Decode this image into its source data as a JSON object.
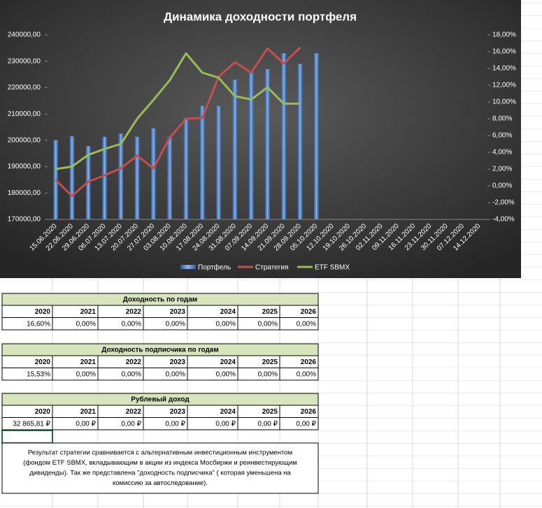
{
  "chart_data": {
    "type": "bar",
    "title": "Динамика доходности портфеля",
    "categories": [
      "15.06.2020",
      "22.06.2020",
      "29.06.2020",
      "06.07.2020",
      "13.07.2020",
      "20.07.2020",
      "27.07.2020",
      "03.08.2020",
      "10.08.2020",
      "17.08.2020",
      "24.08.2020",
      "31.08.2020",
      "07.09.2020",
      "14.09.2020",
      "21.09.2020",
      "28.09.2020",
      "05.10.2020",
      "12.10.2020",
      "19.10.2020",
      "26.10.2020",
      "02.11.2020",
      "09.11.2020",
      "16.11.2020",
      "23.11.2020",
      "30.11.2020",
      "07.12.2020",
      "14.12.2020"
    ],
    "series": [
      {
        "name": "Портфель",
        "type": "bar",
        "color": "#4f81bd",
        "axis": "y",
        "values": [
          200000,
          201500,
          197800,
          201300,
          202500,
          201300,
          204500,
          201300,
          208500,
          213000,
          213000,
          223000,
          226000,
          227000,
          233000,
          229000,
          233000,
          null,
          null,
          null,
          null,
          null,
          null,
          null,
          null,
          null,
          null
        ]
      },
      {
        "name": "Стратегия",
        "type": "line",
        "color": "#c0504d",
        "axis": "y2",
        "values": [
          0.7,
          -1.2,
          0.5,
          1.25,
          2.1,
          3.6,
          2.1,
          5.75,
          8.0,
          8.1,
          13.0,
          14.75,
          13.5,
          16.4,
          14.6,
          16.5,
          null,
          null,
          null,
          null,
          null,
          null,
          null,
          null,
          null,
          null,
          null
        ]
      },
      {
        "name": "ETF SBMX",
        "type": "line",
        "color": "#9bbb59",
        "axis": "y2",
        "values": [
          2.0,
          2.3,
          3.7,
          4.4,
          5.0,
          8.0,
          10.25,
          12.6,
          15.8,
          13.5,
          12.9,
          10.7,
          10.3,
          11.75,
          9.8,
          9.8,
          null,
          null,
          null,
          null,
          null,
          null,
          null,
          null,
          null,
          null,
          null
        ]
      }
    ],
    "ylim": [
      170000,
      240000
    ],
    "yticks": [
      {
        "value": 170000,
        "label": "170000,00"
      },
      {
        "value": 180000,
        "label": "180000,00"
      },
      {
        "value": 190000,
        "label": "190000,00"
      },
      {
        "value": 200000,
        "label": "200000,00"
      },
      {
        "value": 210000,
        "label": "210000,00"
      },
      {
        "value": 220000,
        "label": "220000,00"
      },
      {
        "value": 230000,
        "label": "230000,00"
      },
      {
        "value": 240000,
        "label": "240000,00"
      }
    ],
    "y2lim": [
      -4,
      18
    ],
    "y2ticks": [
      {
        "value": -4,
        "label": "-4,00%"
      },
      {
        "value": -2,
        "label": "-2,00%"
      },
      {
        "value": 0,
        "label": "0,00%"
      },
      {
        "value": 2,
        "label": "2,00%"
      },
      {
        "value": 4,
        "label": "4,00%"
      },
      {
        "value": 6,
        "label": "6,00%"
      },
      {
        "value": 8,
        "label": "8,00%"
      },
      {
        "value": 10,
        "label": "10,00%"
      },
      {
        "value": 12,
        "label": "12,00%"
      },
      {
        "value": 14,
        "label": "14,00%"
      },
      {
        "value": 16,
        "label": "16,00%"
      },
      {
        "value": 18,
        "label": "18,00%"
      }
    ],
    "legend": "bottom"
  },
  "tables": [
    {
      "title": "Доходность по годам",
      "header": [
        "2020",
        "2021",
        "2022",
        "2023",
        "2024",
        "2025",
        "2026"
      ],
      "row": [
        "16,60%",
        "0,00%",
        "0,00%",
        "0,00%",
        "0,00%",
        "0,00%",
        "0,00%"
      ]
    },
    {
      "title": "Доходность подписчика по годам",
      "header": [
        "2020",
        "2021",
        "2022",
        "2023",
        "2024",
        "2025",
        "2026"
      ],
      "row": [
        "15,53%",
        "0,00%",
        "0,00%",
        "0,00%",
        "0,00%",
        "0,00%",
        "0,00%"
      ]
    },
    {
      "title": "Рублевый доход",
      "header": [
        "2020",
        "2021",
        "2022",
        "2023",
        "2024",
        "2025",
        "2026"
      ],
      "row": [
        "32 865,81 ₽",
        "0,00 ₽",
        "0,00 ₽",
        "0,00 ₽",
        "0,00 ₽",
        "0,00 ₽",
        "0,00 ₽"
      ]
    }
  ],
  "note": [
    "Результат стратегии сравнивается с альтернативным инвестиционным инструментом",
    "(фондом ETF SBMX, вкладывающим в акции из индекса Мосбиржи и реинвестирующим",
    "дивиденды). Так же представлена \"доходность подписчика\" ( которая уменьшена на",
    "комиссию за автоследование)."
  ]
}
